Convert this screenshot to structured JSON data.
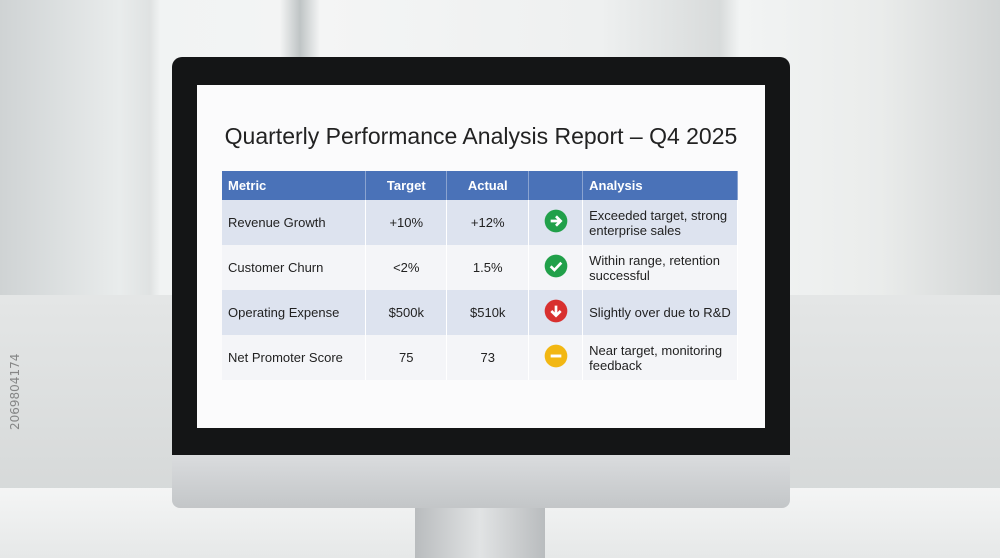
{
  "report": {
    "title": "Quarterly Performance Analysis Report – Q4 2025",
    "table": {
      "headers": [
        "Metric",
        "Target",
        "Actual",
        "Analysis"
      ],
      "rows": [
        [
          "Revenue Growth",
          "+10%",
          "+12%",
          "Exceeded target, strong enterprise sales"
        ],
        [
          "Customer Churn",
          "<2%",
          "1.5%",
          "Within range, retention successful"
        ],
        [
          "Operating Expense",
          "$500k",
          "$510k",
          "Slightly over due to R&D"
        ],
        [
          "Net Promoter Score",
          "75",
          "73",
          "Near target, monitoring feedback"
        ]
      ]
    }
  },
  "watermark": {
    "id": "2069804174"
  }
}
